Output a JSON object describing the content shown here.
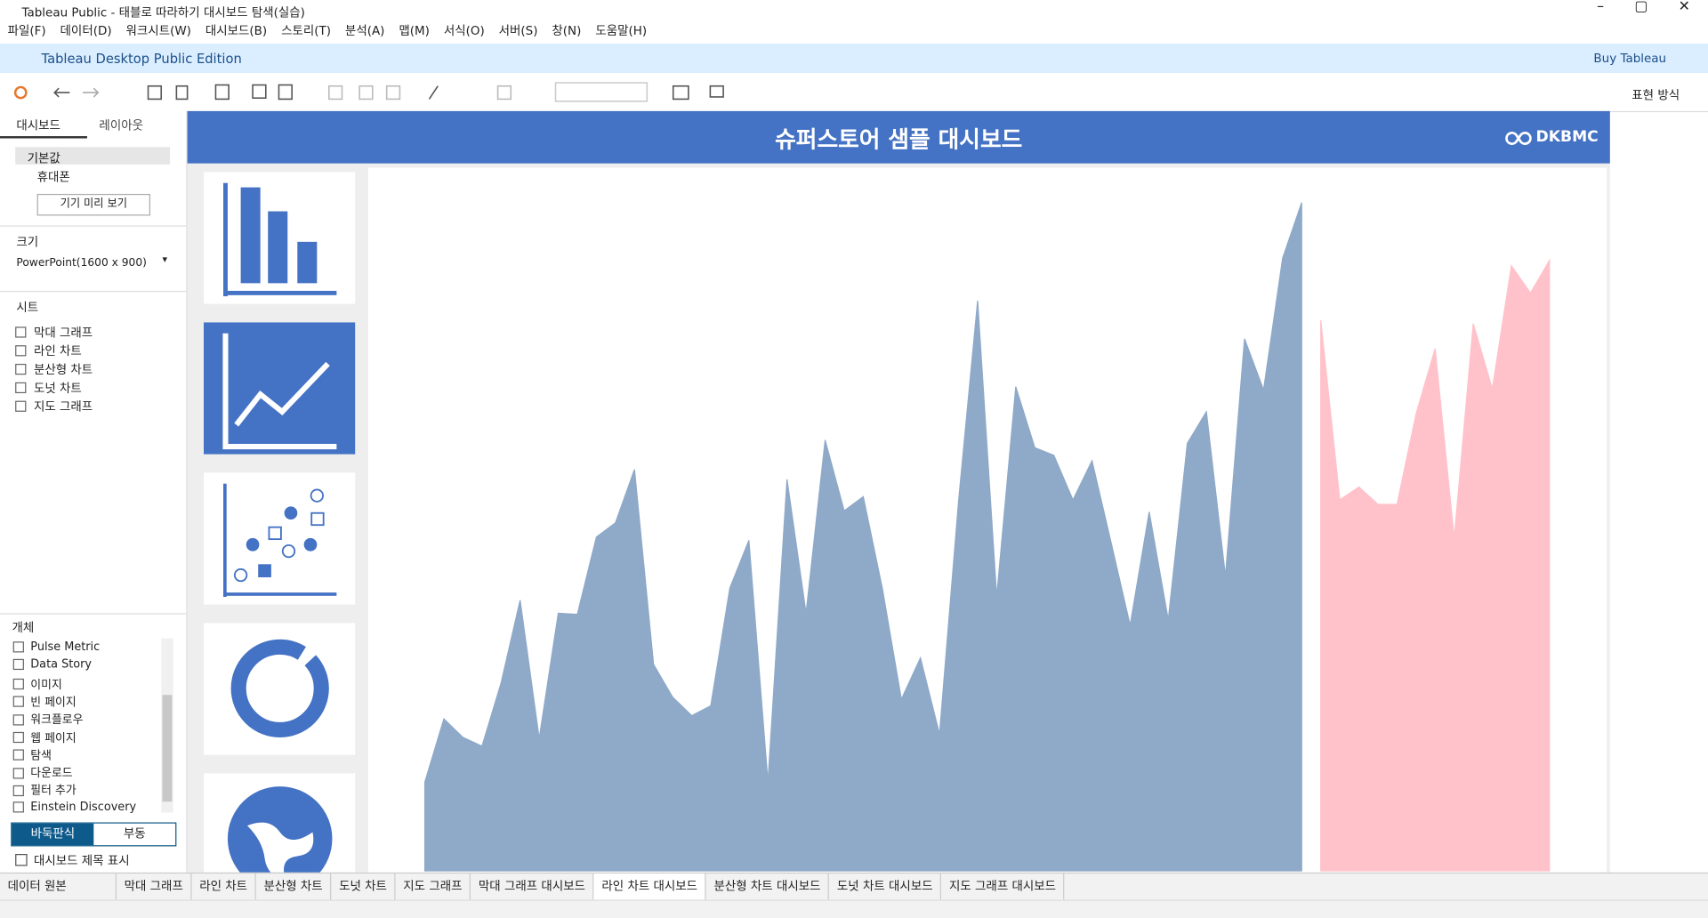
{
  "window": {
    "title": "Tableau Public - 태블로 따라하기 대시보드 탐색(실습)"
  },
  "menu": [
    "파일(F)",
    "데이터(D)",
    "워크시트(W)",
    "대시보드(B)",
    "스토리(T)",
    "분석(A)",
    "맵(M)",
    "서식(O)",
    "서버(S)",
    "창(N)",
    "도움말(H)"
  ],
  "banner": {
    "edition": "Tableau Desktop Public Edition",
    "buy": "Buy Tableau"
  },
  "toolbar": {
    "show_me": "표현 방식"
  },
  "side_panel": {
    "tabs": [
      "대시보드",
      "레이아웃"
    ],
    "devices": [
      "기본값",
      "휴대폰"
    ],
    "preview_button": "기기 미리 보기",
    "size_label": "크기",
    "size_value": "PowerPoint(1600 x 900)",
    "sheets_label": "시트",
    "sheets": [
      "막대 그래프",
      "라인 차트",
      "분산형 차트",
      "도넛 차트",
      "지도 그래프"
    ],
    "objects_label": "개체",
    "objects": [
      "Pulse Metric",
      "Data Story",
      "이미지",
      "빈 페이지",
      "워크플로우",
      "웹 페이지",
      "탐색",
      "다운로드",
      "필터 추가",
      "Einstein Discovery"
    ],
    "layout_modes": [
      "바둑판식",
      "부동"
    ],
    "show_title": "대시보드 제목 표시"
  },
  "dashboard": {
    "title": "슈퍼스토어 샘플 대시보드",
    "logo": "DKBMC"
  },
  "chart_data": {
    "type": "area",
    "categories": [
      null,
      null,
      null,
      null,
      null,
      null,
      null,
      null,
      null,
      null,
      null,
      null,
      null,
      null,
      null,
      null,
      null,
      null,
      null,
      null,
      null,
      null,
      null,
      null,
      null,
      null,
      null,
      null,
      null,
      null,
      null,
      null,
      null,
      null,
      null,
      null,
      null,
      null,
      null,
      null,
      null,
      null,
      null,
      null,
      null,
      null,
      null,
      null,
      null,
      null,
      null,
      null,
      null,
      null,
      null,
      null,
      null,
      null,
      null,
      null
    ],
    "series": [
      {
        "color": "#8fa9c8",
        "values": [
          82,
          140,
          123,
          115,
          173,
          249,
          122,
          237,
          236,
          307,
          320,
          369,
          190,
          160,
          143,
          152,
          260,
          304,
          82,
          360,
          237,
          396,
          331,
          344,
          260,
          158,
          196,
          126,
          340,
          524,
          252,
          445,
          389,
          382,
          341,
          377,
          302,
          226,
          330,
          231,
          393,
          422,
          271,
          489,
          442,
          563,
          614,
          null,
          null,
          null,
          null,
          null,
          null,
          null,
          null,
          null,
          null,
          null,
          null,
          null
        ]
      },
      {
        "color": "#ffc2ca",
        "values": [
          null,
          null,
          null,
          null,
          null,
          null,
          null,
          null,
          null,
          null,
          null,
          null,
          null,
          null,
          null,
          null,
          null,
          null,
          null,
          null,
          null,
          null,
          null,
          null,
          null,
          null,
          null,
          null,
          null,
          null,
          null,
          null,
          null,
          null,
          null,
          null,
          null,
          null,
          null,
          null,
          null,
          null,
          null,
          null,
          null,
          null,
          null,
          506,
          341,
          353,
          337,
          337,
          420,
          480,
          306,
          503,
          443,
          556,
          531,
          561
        ]
      }
    ]
  },
  "sheet_tabs": [
    "데이터 원본",
    "막대 그래프",
    "라인 차트",
    "분산형 차트",
    "도넛 차트",
    "지도 그래프",
    "막대 그래프 대시보드",
    "라인 차트 대시보드",
    "분산형 차트 대시보드",
    "도넛 차트 대시보드",
    "지도 그래프 대시보드"
  ]
}
